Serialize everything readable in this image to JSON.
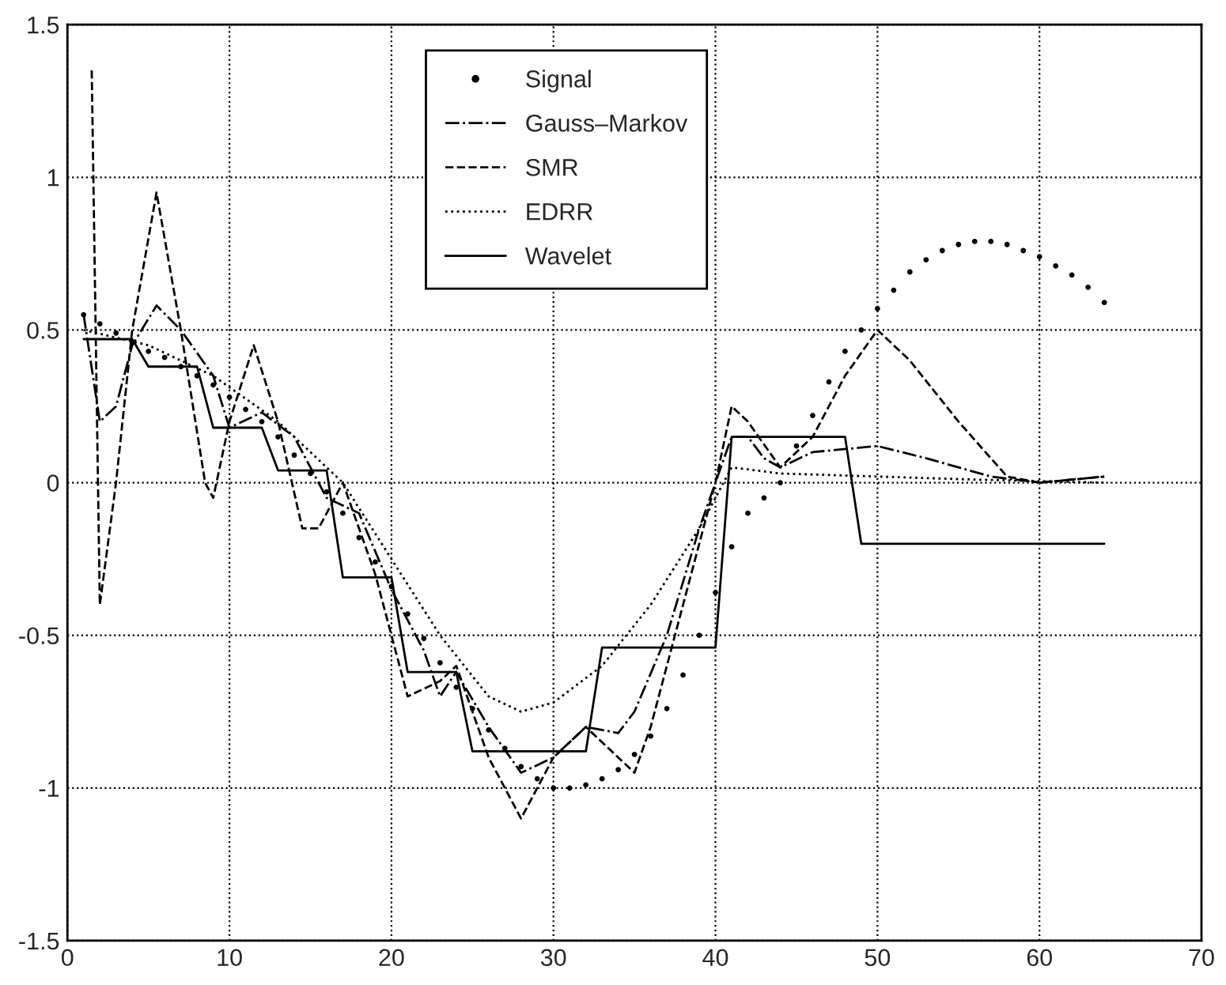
{
  "chart_data": {
    "type": "line",
    "xlim": [
      0,
      70
    ],
    "xticks": [
      0,
      10,
      20,
      30,
      40,
      50,
      60,
      70
    ],
    "ylim": [
      -1.5,
      1.5
    ],
    "yticks": [
      -1.5,
      -1,
      -0.5,
      0,
      0.5,
      1,
      1.5
    ],
    "grid": true,
    "legend": "top",
    "series": [
      {
        "name": "Signal",
        "type": "scatter",
        "marker": "circle",
        "color": "#000000",
        "x": [
          1,
          2,
          3,
          4,
          5,
          6,
          7,
          8,
          9,
          10,
          11,
          12,
          13,
          14,
          15,
          16,
          17,
          18,
          19,
          20,
          21,
          22,
          23,
          24,
          25,
          26,
          27,
          28,
          29,
          30,
          31,
          32,
          33,
          34,
          35,
          36,
          37,
          38,
          39,
          40,
          41,
          42,
          43,
          44,
          45,
          46,
          47,
          48,
          49,
          50,
          51,
          52,
          53,
          54,
          55,
          56,
          57,
          58,
          59,
          60,
          61,
          62,
          63,
          64
        ],
        "values": [
          0.55,
          0.52,
          0.49,
          0.46,
          0.43,
          0.41,
          0.38,
          0.35,
          0.32,
          0.28,
          0.24,
          0.2,
          0.15,
          0.09,
          0.03,
          -0.03,
          -0.1,
          -0.18,
          -0.26,
          -0.34,
          -0.43,
          -0.51,
          -0.59,
          -0.67,
          -0.74,
          -0.81,
          -0.87,
          -0.93,
          -0.97,
          -1.0,
          -1.0,
          -0.99,
          -0.97,
          -0.94,
          -0.89,
          -0.83,
          -0.74,
          -0.63,
          -0.5,
          -0.36,
          -0.21,
          -0.1,
          -0.05,
          0.0,
          0.12,
          0.22,
          0.33,
          0.43,
          0.5,
          0.57,
          0.63,
          0.69,
          0.73,
          0.76,
          0.78,
          0.79,
          0.79,
          0.78,
          0.76,
          0.74,
          0.71,
          0.68,
          0.64,
          0.59
        ]
      },
      {
        "name": "Gauss–Markov",
        "line_style": "dashdot",
        "color": "#000000",
        "x": [
          1,
          2,
          3,
          4,
          5.5,
          7,
          9,
          10,
          12,
          14,
          16,
          18,
          20,
          22,
          23,
          24,
          26,
          28,
          30,
          32,
          34,
          35,
          37,
          39,
          41,
          42,
          43,
          44,
          46,
          50,
          53,
          57,
          60,
          64
        ],
        "values": [
          0.55,
          0.2,
          0.25,
          0.45,
          0.58,
          0.5,
          0.35,
          0.18,
          0.23,
          0.15,
          -0.05,
          -0.1,
          -0.35,
          -0.55,
          -0.7,
          -0.62,
          -0.8,
          -0.95,
          -0.9,
          -0.8,
          -0.82,
          -0.75,
          -0.5,
          -0.15,
          0.15,
          0.15,
          0.08,
          0.05,
          0.1,
          0.12,
          0.08,
          0.02,
          0.0,
          0.02
        ]
      },
      {
        "name": "SMR",
        "line_style": "dashed",
        "color": "#000000",
        "x": [
          1.5,
          2,
          3,
          4,
          5.5,
          7,
          8.5,
          9,
          10,
          11.5,
          13,
          14.5,
          15.5,
          17,
          19,
          21,
          23,
          24,
          26,
          28,
          30,
          32,
          35,
          36,
          38,
          40,
          41,
          42,
          44,
          46,
          48,
          50,
          52,
          55,
          58,
          60,
          64
        ],
        "values": [
          1.35,
          -0.4,
          0.0,
          0.5,
          0.95,
          0.5,
          0.0,
          -0.05,
          0.2,
          0.45,
          0.2,
          -0.15,
          -0.15,
          0.0,
          -0.3,
          -0.7,
          -0.65,
          -0.6,
          -0.9,
          -1.1,
          -0.9,
          -0.8,
          -0.95,
          -0.8,
          -0.4,
          0.0,
          0.25,
          0.2,
          0.05,
          0.15,
          0.35,
          0.5,
          0.4,
          0.2,
          0.02,
          0.0,
          0.02
        ]
      },
      {
        "name": "EDRR",
        "line_style": "dotted",
        "color": "#000000",
        "x": [
          1,
          5,
          9,
          13,
          17,
          20,
          23,
          26,
          28,
          30,
          33,
          36,
          39,
          41,
          44,
          50,
          56,
          64
        ],
        "values": [
          0.5,
          0.45,
          0.35,
          0.2,
          0.0,
          -0.25,
          -0.5,
          -0.7,
          -0.75,
          -0.72,
          -0.6,
          -0.4,
          -0.15,
          0.05,
          0.03,
          0.02,
          0.01,
          0.0
        ]
      },
      {
        "name": "Wavelet",
        "line_style": "solid",
        "color": "#000000",
        "x": [
          1,
          4,
          5,
          8,
          9,
          12,
          13,
          16,
          17,
          20,
          21,
          24,
          25,
          32,
          33,
          40,
          41,
          48,
          49,
          64
        ],
        "values": [
          0.47,
          0.47,
          0.38,
          0.38,
          0.18,
          0.18,
          0.04,
          0.04,
          -0.31,
          -0.31,
          -0.62,
          -0.62,
          -0.88,
          -0.88,
          -0.54,
          -0.54,
          0.15,
          0.15,
          -0.2,
          -0.2
        ]
      }
    ]
  }
}
